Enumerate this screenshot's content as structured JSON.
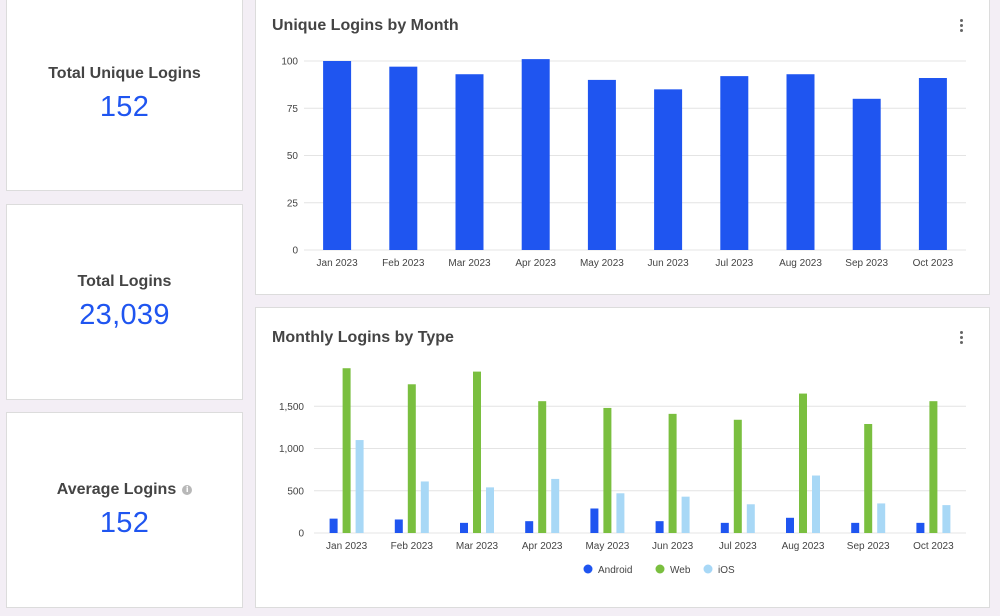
{
  "kpis": {
    "total_unique": {
      "label": "Total Unique Logins",
      "value": "152"
    },
    "total_logins": {
      "label": "Total Logins",
      "value": "23,039"
    },
    "average_logins": {
      "label": "Average Logins",
      "value": "152",
      "info_icon": "info-icon"
    }
  },
  "chart1": {
    "title": "Unique Logins by Month",
    "menu_icon": "kebab-menu-icon"
  },
  "chart2": {
    "title": "Monthly Logins by Type",
    "menu_icon": "kebab-menu-icon"
  },
  "colors": {
    "accent": "#1f55f0",
    "android": "#1f55f0",
    "web": "#7abf3f",
    "ios": "#a8d8f6",
    "grid": "#e4e4e4"
  },
  "chart_data": [
    {
      "type": "bar",
      "title": "Unique Logins by Month",
      "categories": [
        "Jan 2023",
        "Feb 2023",
        "Mar 2023",
        "Apr 2023",
        "May 2023",
        "Jun 2023",
        "Jul 2023",
        "Aug 2023",
        "Sep 2023",
        "Oct 2023"
      ],
      "values": [
        100,
        97,
        93,
        101,
        90,
        85,
        92,
        93,
        80,
        91
      ],
      "ylim": [
        0,
        100
      ],
      "yticks": [
        0,
        25,
        50,
        75,
        100
      ],
      "ytick_labels": [
        "0",
        "25",
        "50",
        "75",
        "100"
      ],
      "grid": true,
      "legend": "none"
    },
    {
      "type": "bar",
      "title": "Monthly Logins by Type",
      "categories": [
        "Jan 2023",
        "Feb 2023",
        "Mar 2023",
        "Apr 2023",
        "May 2023",
        "Jun 2023",
        "Jul 2023",
        "Aug 2023",
        "Sep 2023",
        "Oct 2023"
      ],
      "series": [
        {
          "name": "Android",
          "values": [
            170,
            160,
            120,
            140,
            290,
            140,
            120,
            180,
            120,
            120
          ]
        },
        {
          "name": "Web",
          "values": [
            1950,
            1760,
            1910,
            1560,
            1480,
            1410,
            1340,
            1650,
            1290,
            1560
          ]
        },
        {
          "name": "iOS",
          "values": [
            1100,
            610,
            540,
            640,
            470,
            430,
            340,
            680,
            350,
            330
          ]
        }
      ],
      "ylim": [
        0,
        2000
      ],
      "yticks": [
        0,
        500,
        1000,
        1500
      ],
      "ytick_labels": [
        "0",
        "500",
        "1,000",
        "1,500"
      ],
      "grid": true,
      "legend": "bottom-center"
    }
  ]
}
